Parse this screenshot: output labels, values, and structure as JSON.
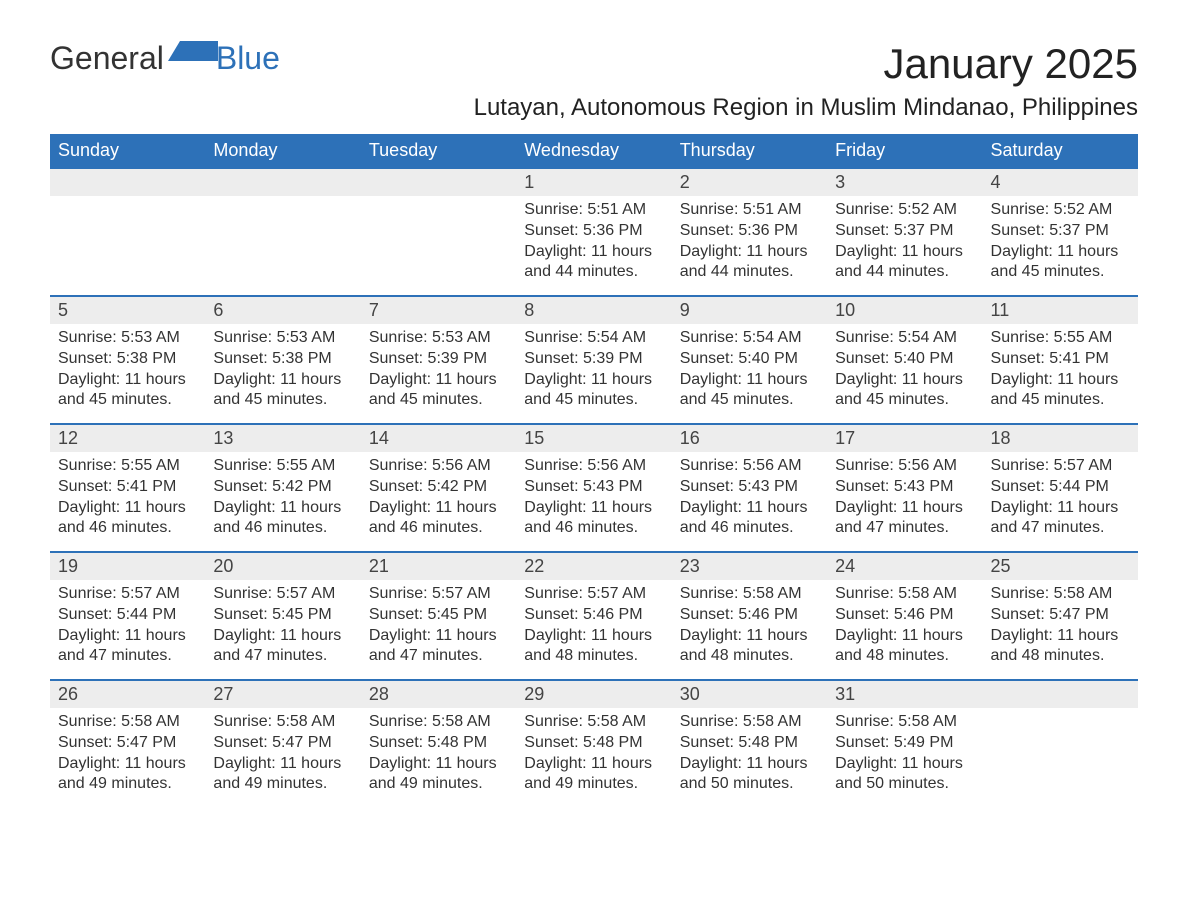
{
  "logo": {
    "text1": "General",
    "text2": "Blue"
  },
  "title": "January 2025",
  "location": "Lutayan, Autonomous Region in Muslim Mindanao, Philippines",
  "colors": {
    "header_bg": "#2d71b8",
    "header_text": "#ffffff",
    "daynum_bg": "#ededed",
    "row_border": "#2d71b8",
    "body_text": "#333333",
    "page_bg": "#ffffff"
  },
  "weekdays": [
    "Sunday",
    "Monday",
    "Tuesday",
    "Wednesday",
    "Thursday",
    "Friday",
    "Saturday"
  ],
  "weeks": [
    [
      null,
      null,
      null,
      {
        "n": "1",
        "sr": "5:51 AM",
        "ss": "5:36 PM",
        "dl": "11 hours and 44 minutes."
      },
      {
        "n": "2",
        "sr": "5:51 AM",
        "ss": "5:36 PM",
        "dl": "11 hours and 44 minutes."
      },
      {
        "n": "3",
        "sr": "5:52 AM",
        "ss": "5:37 PM",
        "dl": "11 hours and 44 minutes."
      },
      {
        "n": "4",
        "sr": "5:52 AM",
        "ss": "5:37 PM",
        "dl": "11 hours and 45 minutes."
      }
    ],
    [
      {
        "n": "5",
        "sr": "5:53 AM",
        "ss": "5:38 PM",
        "dl": "11 hours and 45 minutes."
      },
      {
        "n": "6",
        "sr": "5:53 AM",
        "ss": "5:38 PM",
        "dl": "11 hours and 45 minutes."
      },
      {
        "n": "7",
        "sr": "5:53 AM",
        "ss": "5:39 PM",
        "dl": "11 hours and 45 minutes."
      },
      {
        "n": "8",
        "sr": "5:54 AM",
        "ss": "5:39 PM",
        "dl": "11 hours and 45 minutes."
      },
      {
        "n": "9",
        "sr": "5:54 AM",
        "ss": "5:40 PM",
        "dl": "11 hours and 45 minutes."
      },
      {
        "n": "10",
        "sr": "5:54 AM",
        "ss": "5:40 PM",
        "dl": "11 hours and 45 minutes."
      },
      {
        "n": "11",
        "sr": "5:55 AM",
        "ss": "5:41 PM",
        "dl": "11 hours and 45 minutes."
      }
    ],
    [
      {
        "n": "12",
        "sr": "5:55 AM",
        "ss": "5:41 PM",
        "dl": "11 hours and 46 minutes."
      },
      {
        "n": "13",
        "sr": "5:55 AM",
        "ss": "5:42 PM",
        "dl": "11 hours and 46 minutes."
      },
      {
        "n": "14",
        "sr": "5:56 AM",
        "ss": "5:42 PM",
        "dl": "11 hours and 46 minutes."
      },
      {
        "n": "15",
        "sr": "5:56 AM",
        "ss": "5:43 PM",
        "dl": "11 hours and 46 minutes."
      },
      {
        "n": "16",
        "sr": "5:56 AM",
        "ss": "5:43 PM",
        "dl": "11 hours and 46 minutes."
      },
      {
        "n": "17",
        "sr": "5:56 AM",
        "ss": "5:43 PM",
        "dl": "11 hours and 47 minutes."
      },
      {
        "n": "18",
        "sr": "5:57 AM",
        "ss": "5:44 PM",
        "dl": "11 hours and 47 minutes."
      }
    ],
    [
      {
        "n": "19",
        "sr": "5:57 AM",
        "ss": "5:44 PM",
        "dl": "11 hours and 47 minutes."
      },
      {
        "n": "20",
        "sr": "5:57 AM",
        "ss": "5:45 PM",
        "dl": "11 hours and 47 minutes."
      },
      {
        "n": "21",
        "sr": "5:57 AM",
        "ss": "5:45 PM",
        "dl": "11 hours and 47 minutes."
      },
      {
        "n": "22",
        "sr": "5:57 AM",
        "ss": "5:46 PM",
        "dl": "11 hours and 48 minutes."
      },
      {
        "n": "23",
        "sr": "5:58 AM",
        "ss": "5:46 PM",
        "dl": "11 hours and 48 minutes."
      },
      {
        "n": "24",
        "sr": "5:58 AM",
        "ss": "5:46 PM",
        "dl": "11 hours and 48 minutes."
      },
      {
        "n": "25",
        "sr": "5:58 AM",
        "ss": "5:47 PM",
        "dl": "11 hours and 48 minutes."
      }
    ],
    [
      {
        "n": "26",
        "sr": "5:58 AM",
        "ss": "5:47 PM",
        "dl": "11 hours and 49 minutes."
      },
      {
        "n": "27",
        "sr": "5:58 AM",
        "ss": "5:47 PM",
        "dl": "11 hours and 49 minutes."
      },
      {
        "n": "28",
        "sr": "5:58 AM",
        "ss": "5:48 PM",
        "dl": "11 hours and 49 minutes."
      },
      {
        "n": "29",
        "sr": "5:58 AM",
        "ss": "5:48 PM",
        "dl": "11 hours and 49 minutes."
      },
      {
        "n": "30",
        "sr": "5:58 AM",
        "ss": "5:48 PM",
        "dl": "11 hours and 50 minutes."
      },
      {
        "n": "31",
        "sr": "5:58 AM",
        "ss": "5:49 PM",
        "dl": "11 hours and 50 minutes."
      },
      null
    ]
  ],
  "labels": {
    "sunrise": "Sunrise:",
    "sunset": "Sunset:",
    "daylight": "Daylight:"
  }
}
